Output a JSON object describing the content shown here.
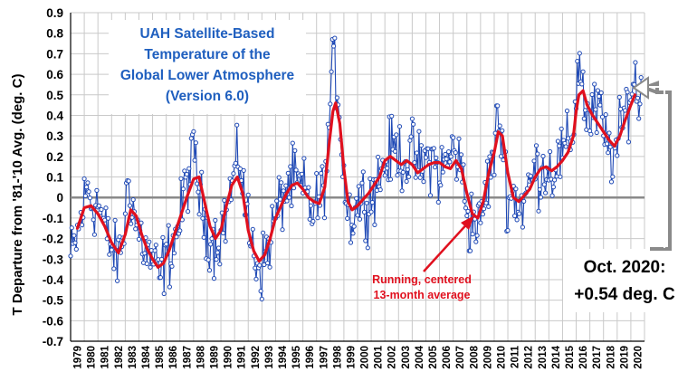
{
  "chart_data": {
    "type": "line",
    "title_lines": [
      "UAH Satellite-Based",
      "Temperature of the",
      "Global Lower Atmosphere",
      "(Version 6.0)"
    ],
    "ylabel": "T Departure from '81-'10 Avg. (deg. C)",
    "xlabel": "",
    "ylim": [
      -0.7,
      0.9
    ],
    "y_ticks": [
      "0.9",
      "0.8",
      "0.7",
      "0.6",
      "0.5",
      "0.4",
      "0.3",
      "0.2",
      "0.1",
      "0",
      "-0.1",
      "-0.2",
      "-0.3",
      "-0.4",
      "-0.5",
      "-0.6",
      "-0.7"
    ],
    "x_ticks": [
      "1979",
      "1980",
      "1981",
      "1982",
      "1983",
      "1984",
      "1985",
      "1986",
      "1987",
      "1988",
      "1989",
      "1990",
      "1991",
      "1992",
      "1993",
      "1994",
      "1995",
      "1996",
      "1997",
      "1998",
      "1999",
      "2000",
      "2001",
      "2002",
      "2003",
      "2004",
      "2005",
      "2006",
      "2007",
      "2008",
      "2009",
      "2010",
      "2011",
      "2012",
      "2013",
      "2014",
      "2015",
      "2016",
      "2017",
      "2018",
      "2019",
      "2020"
    ],
    "grid": true,
    "zero_line": true,
    "colors": {
      "monthly": "#1f49b5",
      "running": "#e0101e",
      "title": "#1f5fbf",
      "zero": "#8a8a8a",
      "grid": "#c9c9c9"
    },
    "monthly_anchors": {
      "x": [
        1979.0,
        1979.3,
        1979.6,
        1980.0,
        1980.3,
        1980.6,
        1981.0,
        1981.3,
        1981.6,
        1982.0,
        1982.3,
        1982.6,
        1983.0,
        1983.2,
        1983.5,
        1983.8,
        1984.2,
        1984.6,
        1985.0,
        1985.5,
        1985.8,
        1986.2,
        1986.6,
        1987.0,
        1987.4,
        1987.8,
        1988.1,
        1988.4,
        1988.8,
        1989.2,
        1989.6,
        1990.0,
        1990.4,
        1990.8,
        1991.1,
        1991.4,
        1991.8,
        1992.2,
        1992.6,
        1993.0,
        1993.4,
        1993.8,
        1994.2,
        1994.6,
        1995.0,
        1995.4,
        1995.8,
        1996.2,
        1996.6,
        1997.0,
        1997.4,
        1997.8,
        1998.0,
        1998.3,
        1998.6,
        1998.9,
        1999.2,
        1999.6,
        2000.0,
        2000.4,
        2000.8,
        2001.2,
        2001.6,
        2002.0,
        2002.4,
        2002.8,
        2003.2,
        2003.6,
        2004.0,
        2004.4,
        2004.8,
        2005.2,
        2005.6,
        2006.0,
        2006.4,
        2006.8,
        2007.1,
        2007.4,
        2007.8,
        2008.1,
        2008.5,
        2008.9,
        2009.3,
        2009.7,
        2010.1,
        2010.3,
        2010.6,
        2011.0,
        2011.4,
        2011.8,
        2012.2,
        2012.6,
        2013.0,
        2013.4,
        2013.8,
        2014.2,
        2014.6,
        2015.0,
        2015.4,
        2015.8,
        2016.1,
        2016.3,
        2016.6,
        2016.9,
        2017.3,
        2017.7,
        2018.0,
        2018.4,
        2018.8,
        2019.2,
        2019.6,
        2020.0,
        2020.3,
        2020.6,
        2020.79
      ],
      "y": [
        -0.3,
        -0.24,
        -0.16,
        -0.02,
        0.06,
        -0.04,
        -0.02,
        -0.1,
        -0.18,
        -0.24,
        -0.3,
        -0.28,
        -0.1,
        0.1,
        -0.02,
        -0.14,
        -0.2,
        -0.28,
        -0.3,
        -0.4,
        -0.32,
        -0.28,
        -0.2,
        -0.12,
        0.06,
        0.14,
        0.22,
        0.02,
        -0.12,
        -0.18,
        -0.22,
        -0.16,
        -0.08,
        0.06,
        0.12,
        0.2,
        -0.04,
        -0.22,
        -0.3,
        -0.34,
        -0.26,
        -0.14,
        -0.06,
        0.02,
        0.06,
        0.08,
        0.04,
        0.02,
        -0.06,
        -0.04,
        0.02,
        0.18,
        0.5,
        0.66,
        0.5,
        0.2,
        -0.04,
        -0.1,
        -0.02,
        0.0,
        -0.02,
        0.04,
        0.1,
        0.16,
        0.22,
        0.24,
        0.2,
        0.18,
        0.22,
        0.16,
        0.14,
        0.2,
        0.18,
        0.1,
        0.16,
        0.2,
        0.26,
        0.16,
        0.08,
        -0.12,
        -0.1,
        -0.16,
        0.0,
        0.12,
        0.26,
        0.4,
        0.28,
        -0.02,
        0.02,
        -0.04,
        -0.02,
        0.06,
        0.14,
        0.12,
        0.16,
        0.12,
        0.18,
        0.2,
        0.24,
        0.34,
        0.62,
        0.66,
        0.46,
        0.36,
        0.4,
        0.44,
        0.3,
        0.24,
        0.2,
        0.3,
        0.42,
        0.52,
        0.56,
        0.48,
        0.54
      ]
    },
    "running_average": {
      "x": [
        1979.5,
        1980.0,
        1980.5,
        1981.0,
        1981.5,
        1982.0,
        1982.5,
        1983.0,
        1983.4,
        1983.8,
        1984.2,
        1984.6,
        1985.0,
        1985.4,
        1985.8,
        1986.2,
        1986.6,
        1987.0,
        1987.5,
        1988.0,
        1988.4,
        1988.8,
        1989.2,
        1989.6,
        1990.0,
        1990.4,
        1990.8,
        1991.2,
        1991.6,
        1992.0,
        1992.4,
        1992.8,
        1993.2,
        1993.6,
        1994.0,
        1994.4,
        1994.8,
        1995.2,
        1995.6,
        1996.0,
        1996.4,
        1996.8,
        1997.2,
        1997.6,
        1997.9,
        1998.2,
        1998.4,
        1998.7,
        1999.0,
        1999.3,
        1999.6,
        2000.0,
        2000.4,
        2000.8,
        2001.2,
        2001.6,
        2002.0,
        2002.4,
        2002.8,
        2003.2,
        2003.6,
        2004.0,
        2004.4,
        2004.8,
        2005.2,
        2005.6,
        2006.0,
        2006.4,
        2006.8,
        2007.2,
        2007.6,
        2008.0,
        2008.4,
        2008.8,
        2009.2,
        2009.6,
        2010.0,
        2010.3,
        2010.6,
        2011.0,
        2011.4,
        2011.8,
        2012.2,
        2012.6,
        2013.0,
        2013.4,
        2013.8,
        2014.2,
        2014.6,
        2015.0,
        2015.4,
        2015.8,
        2016.0,
        2016.2,
        2016.5,
        2016.8,
        2017.2,
        2017.6,
        2018.0,
        2018.4,
        2018.8,
        2019.2,
        2019.6,
        2020.0,
        2020.3
      ],
      "y": [
        -0.15,
        -0.05,
        -0.04,
        -0.08,
        -0.14,
        -0.22,
        -0.27,
        -0.18,
        -0.06,
        -0.09,
        -0.18,
        -0.25,
        -0.3,
        -0.34,
        -0.32,
        -0.26,
        -0.18,
        -0.1,
        0.0,
        0.09,
        0.1,
        -0.02,
        -0.14,
        -0.2,
        -0.16,
        -0.04,
        0.06,
        0.1,
        0.02,
        -0.16,
        -0.26,
        -0.31,
        -0.28,
        -0.2,
        -0.1,
        -0.04,
        0.02,
        0.06,
        0.07,
        0.04,
        0.0,
        -0.02,
        -0.03,
        0.05,
        0.25,
        0.42,
        0.46,
        0.36,
        0.14,
        -0.02,
        -0.06,
        -0.04,
        -0.01,
        0.02,
        0.06,
        0.1,
        0.18,
        0.2,
        0.18,
        0.16,
        0.18,
        0.16,
        0.12,
        0.14,
        0.16,
        0.17,
        0.17,
        0.15,
        0.14,
        0.18,
        0.14,
        0.02,
        -0.08,
        -0.1,
        -0.02,
        0.12,
        0.22,
        0.32,
        0.3,
        0.12,
        0.0,
        -0.02,
        0.01,
        0.04,
        0.1,
        0.14,
        0.15,
        0.13,
        0.15,
        0.18,
        0.22,
        0.3,
        0.42,
        0.5,
        0.52,
        0.45,
        0.4,
        0.36,
        0.32,
        0.28,
        0.25,
        0.3,
        0.38,
        0.45,
        0.5
      ]
    },
    "annotations": {
      "running_label_lines": [
        "Running, centered",
        "13-month average"
      ],
      "callout_lines": [
        "Oct. 2020:",
        "+0.54 deg. C"
      ]
    }
  }
}
